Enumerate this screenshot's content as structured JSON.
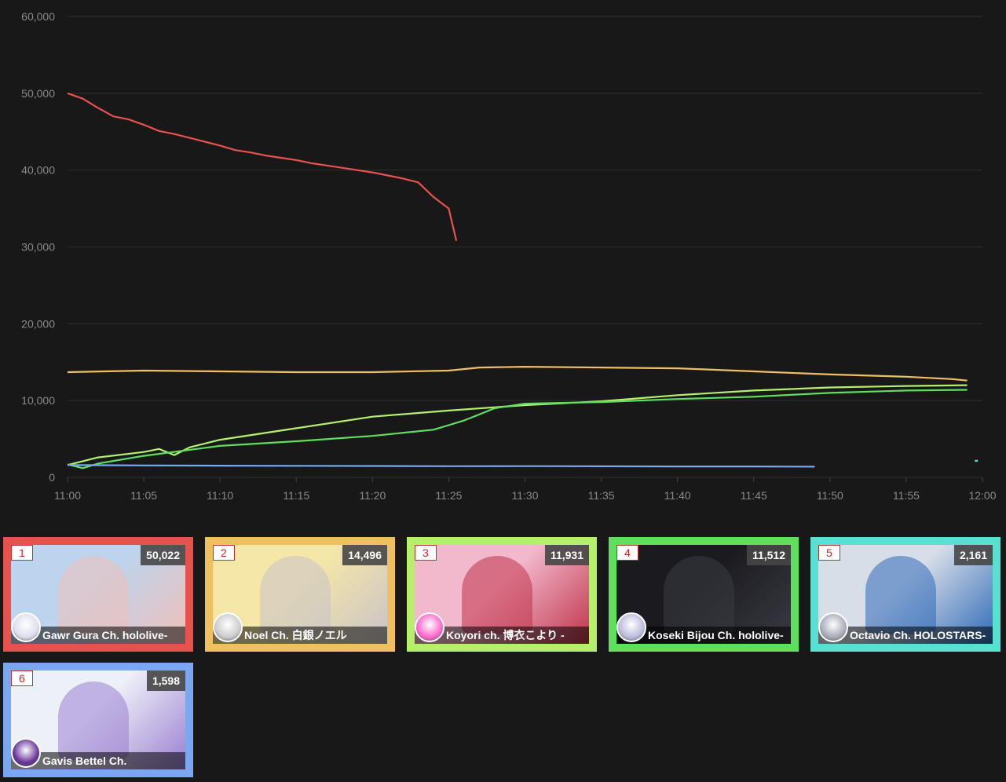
{
  "chart_data": {
    "type": "line",
    "ylim": [
      0,
      60000
    ],
    "y_ticks": [
      "0",
      "10,000",
      "20,000",
      "30,000",
      "40,000",
      "50,000",
      "60,000"
    ],
    "x_ticks": [
      "11:00",
      "11:05",
      "11:10",
      "11:15",
      "11:20",
      "11:25",
      "11:30",
      "11:35",
      "11:40",
      "11:45",
      "11:50",
      "11:55",
      "12:00"
    ],
    "grid": true,
    "series": [
      {
        "color": "#e8524e",
        "points": [
          [
            "11:00",
            50000
          ],
          [
            "11:01",
            49300
          ],
          [
            "11:02",
            48100
          ],
          [
            "11:03",
            47000
          ],
          [
            "11:04",
            46600
          ],
          [
            "11:05",
            45900
          ],
          [
            "11:06",
            45100
          ],
          [
            "11:07",
            44700
          ],
          [
            "11:08",
            44200
          ],
          [
            "11:09",
            43700
          ],
          [
            "11:10",
            43200
          ],
          [
            "11:11",
            42600
          ],
          [
            "11:12",
            42300
          ],
          [
            "11:13",
            41900
          ],
          [
            "11:14",
            41600
          ],
          [
            "11:15",
            41300
          ],
          [
            "11:16",
            40900
          ],
          [
            "11:17",
            40600
          ],
          [
            "11:18",
            40300
          ],
          [
            "11:19",
            40000
          ],
          [
            "11:20",
            39700
          ],
          [
            "11:21",
            39300
          ],
          [
            "11:22",
            38900
          ],
          [
            "11:23",
            38400
          ],
          [
            "11:24",
            36500
          ],
          [
            "11:25",
            35000
          ],
          [
            "11:25:30",
            30800
          ]
        ]
      },
      {
        "color": "#f0c060",
        "points": [
          [
            "11:00",
            13700
          ],
          [
            "11:05",
            13900
          ],
          [
            "11:10",
            13800
          ],
          [
            "11:15",
            13700
          ],
          [
            "11:20",
            13700
          ],
          [
            "11:25",
            13900
          ],
          [
            "11:27",
            14300
          ],
          [
            "11:30",
            14400
          ],
          [
            "11:35",
            14300
          ],
          [
            "11:40",
            14200
          ],
          [
            "11:45",
            13800
          ],
          [
            "11:50",
            13400
          ],
          [
            "11:55",
            13100
          ],
          [
            "11:58",
            12800
          ],
          [
            "11:59",
            12600
          ]
        ]
      },
      {
        "color": "#b6f06a",
        "points": [
          [
            "11:00",
            1600
          ],
          [
            "11:02",
            2600
          ],
          [
            "11:05",
            3300
          ],
          [
            "11:06",
            3700
          ],
          [
            "11:07",
            2900
          ],
          [
            "11:08",
            3900
          ],
          [
            "11:10",
            4900
          ],
          [
            "11:15",
            6400
          ],
          [
            "11:20",
            7900
          ],
          [
            "11:25",
            8700
          ],
          [
            "11:30",
            9400
          ],
          [
            "11:35",
            9900
          ],
          [
            "11:40",
            10700
          ],
          [
            "11:45",
            11300
          ],
          [
            "11:50",
            11700
          ],
          [
            "11:55",
            11900
          ],
          [
            "11:59",
            12000
          ]
        ]
      },
      {
        "color": "#5ee05e",
        "points": [
          [
            "11:00",
            1700
          ],
          [
            "11:01",
            1200
          ],
          [
            "11:02",
            1800
          ],
          [
            "11:05",
            2800
          ],
          [
            "11:10",
            4100
          ],
          [
            "11:15",
            4700
          ],
          [
            "11:20",
            5400
          ],
          [
            "11:24",
            6200
          ],
          [
            "11:25",
            6800
          ],
          [
            "11:26",
            7400
          ],
          [
            "11:28",
            9000
          ],
          [
            "11:30",
            9600
          ],
          [
            "11:35",
            9800
          ],
          [
            "11:40",
            10200
          ],
          [
            "11:45",
            10500
          ],
          [
            "11:50",
            11000
          ],
          [
            "11:55",
            11300
          ],
          [
            "11:59",
            11400
          ]
        ]
      },
      {
        "color": "#7ba7f0",
        "points": [
          [
            "11:00",
            1600
          ],
          [
            "11:05",
            1550
          ],
          [
            "11:10",
            1520
          ],
          [
            "11:15",
            1500
          ],
          [
            "11:20",
            1480
          ],
          [
            "11:25",
            1450
          ],
          [
            "11:30",
            1460
          ],
          [
            "11:35",
            1440
          ],
          [
            "11:40",
            1420
          ],
          [
            "11:45",
            1420
          ],
          [
            "11:49",
            1390
          ]
        ]
      },
      {
        "color": "#58e0d0",
        "points": [
          [
            "11:59.5",
            2150
          ],
          [
            "11:59.7",
            2161
          ]
        ]
      }
    ]
  },
  "cards": [
    {
      "rank": "1",
      "count": "50,022",
      "name": "Gawr Gura Ch. hololive-",
      "border": "#e8524e",
      "thumb_bg": "#bcd4ee",
      "thumb_accent": "#f0c0b8",
      "avatar_bg": "#dde"
    },
    {
      "rank": "2",
      "count": "14,496",
      "name": "Noel Ch. 白銀ノエル",
      "border": "#f0c060",
      "thumb_bg": "#f5e7a8",
      "thumb_accent": "#c9c3c8",
      "avatar_bg": "#ccc"
    },
    {
      "rank": "3",
      "count": "11,931",
      "name": "Koyori ch. 博衣こより -",
      "border": "#b6f06a",
      "thumb_bg": "#f2b8cc",
      "thumb_accent": "#c0334a",
      "avatar_bg": "#f6c"
    },
    {
      "rank": "4",
      "count": "11,512",
      "name": "Koseki Bijou Ch. hololive-",
      "border": "#5ee05e",
      "thumb_bg": "#1b1b1f",
      "thumb_accent": "#3a3a44",
      "avatar_bg": "#bbd"
    },
    {
      "rank": "5",
      "count": "2,161",
      "name": "Octavio Ch. HOLOSTARS-",
      "border": "#58e0d0",
      "thumb_bg": "#d8dee8",
      "thumb_accent": "#2f6ab8",
      "avatar_bg": "#aab"
    },
    {
      "rank": "6",
      "count": "1,598",
      "name": "Gavis Bettel Ch.",
      "border": "#7ba7f0",
      "thumb_bg": "#eef0f8",
      "thumb_accent": "#9a7fd0",
      "avatar_bg": "#639"
    }
  ]
}
